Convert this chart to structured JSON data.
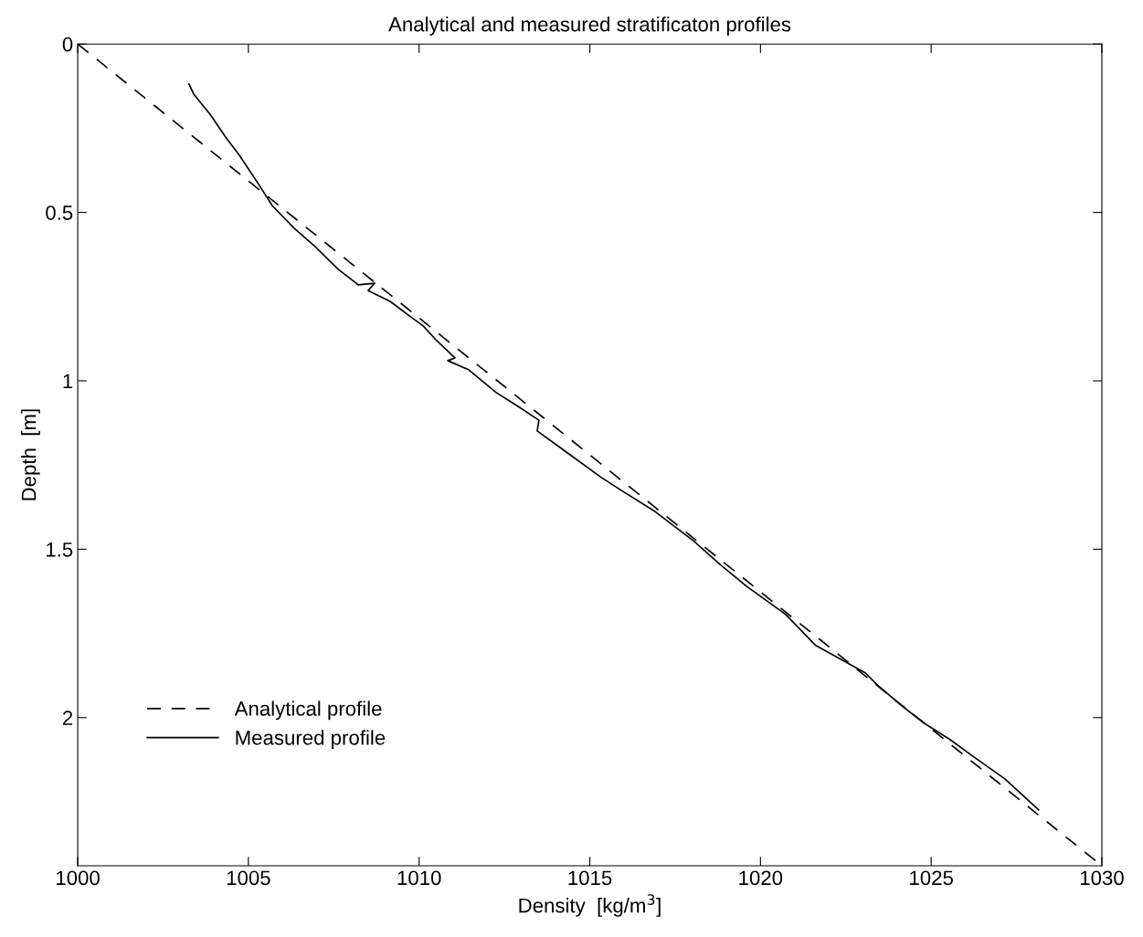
{
  "chart_data": {
    "type": "line",
    "title": "Analytical and measured stratificaton profiles",
    "xlabel": "Density  [kg/m$^{3}$]",
    "ylabel": "Depth  [m]",
    "xlim": [
      1000,
      1030
    ],
    "xticks": [
      1000,
      1005,
      1010,
      1015,
      1020,
      1025,
      1030
    ],
    "ylim": [
      2.44,
      0
    ],
    "yticks": [
      0,
      0.5,
      1,
      1.5,
      2
    ],
    "grid": false,
    "legend": "bottom left",
    "series": [
      {
        "name": "Analytical profile",
        "color": "#000000",
        "line_style": "dashed",
        "x": [
          1000,
          1030
        ],
        "values": [
          0,
          2.44
        ]
      },
      {
        "name": "Measured profile",
        "color": "#000000",
        "line_style": "solid",
        "x": [
          1003.26,
          1003.4,
          1003.88,
          1004.33,
          1004.74,
          1005.27,
          1005.7,
          1006.34,
          1006.96,
          1007.63,
          1008.22,
          1008.7,
          1008.51,
          1009.15,
          1009.69,
          1010.12,
          1010.49,
          1011.05,
          1010.84,
          1011.45,
          1012.26,
          1012.9,
          1013.51,
          1013.46,
          1014.24,
          1015.31,
          1015.92,
          1016.91,
          1018.06,
          1018.81,
          1019.59,
          1020.74,
          1021.62,
          1023.07,
          1023.41,
          1024.14,
          1024.83,
          1025.55,
          1026.28,
          1027.16,
          1028.15
        ],
        "values": [
          0.119,
          0.149,
          0.209,
          0.276,
          0.331,
          0.412,
          0.48,
          0.547,
          0.602,
          0.669,
          0.715,
          0.71,
          0.732,
          0.764,
          0.805,
          0.837,
          0.878,
          0.932,
          0.94,
          0.967,
          1.035,
          1.076,
          1.117,
          1.149,
          1.206,
          1.285,
          1.325,
          1.388,
          1.477,
          1.545,
          1.61,
          1.694,
          1.786,
          1.867,
          1.902,
          1.965,
          2.019,
          2.065,
          2.119,
          2.182,
          2.274
        ]
      }
    ]
  }
}
